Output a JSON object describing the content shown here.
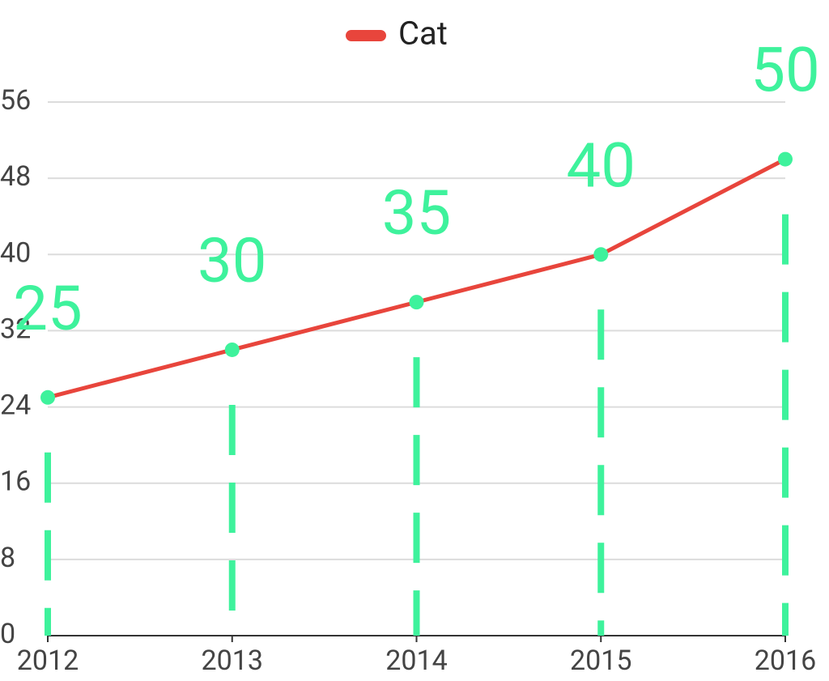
{
  "chart_data": {
    "type": "line",
    "categories": [
      "2012",
      "2013",
      "2014",
      "2015",
      "2016"
    ],
    "series": [
      {
        "name": "Cat",
        "color": "#e8453c",
        "marker_color": "#3ef29c",
        "values": [
          25,
          30,
          35,
          40,
          50
        ]
      }
    ],
    "ylim": [
      0,
      56
    ],
    "yticks": [
      0,
      8,
      16,
      24,
      32,
      40,
      48,
      56
    ],
    "grid": true,
    "legend": "top"
  }
}
